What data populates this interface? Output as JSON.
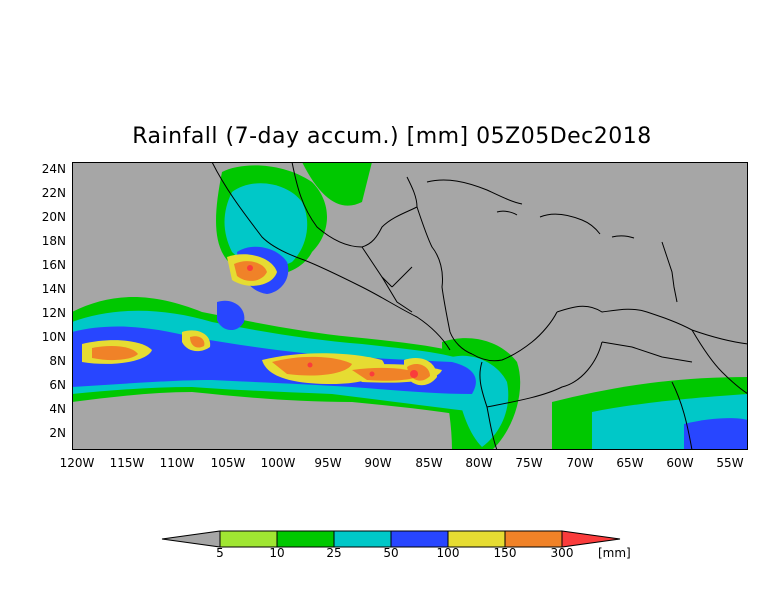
{
  "title": "Rainfall (7-day accum.) [mm] 05Z05Dec2018",
  "lat_labels": [
    "24N",
    "22N",
    "20N",
    "18N",
    "16N",
    "14N",
    "12N",
    "10N",
    "8N",
    "6N",
    "4N",
    "2N"
  ],
  "lon_labels": [
    "120W",
    "115W",
    "110W",
    "105W",
    "100W",
    "95W",
    "90W",
    "85W",
    "80W",
    "75W",
    "70W",
    "65W",
    "60W",
    "55W"
  ],
  "legend": {
    "unit": "[mm]",
    "thresholds": [
      "5",
      "10",
      "25",
      "50",
      "100",
      "150",
      "300"
    ],
    "colors": {
      "below": "#a6a6a6",
      "5-10": "#a0e632",
      "10-25": "#00c800",
      "25-50": "#00c8c8",
      "50-100": "#2846ff",
      "100-150": "#e6dc32",
      "150-300": "#f08228",
      "300+": "#fa3c3c"
    }
  },
  "map": {
    "extent": {
      "lon": [
        -121,
        -54
      ],
      "lat": [
        1,
        25
      ]
    },
    "background_color": "#a6a6a6",
    "border_color": "#000000"
  }
}
